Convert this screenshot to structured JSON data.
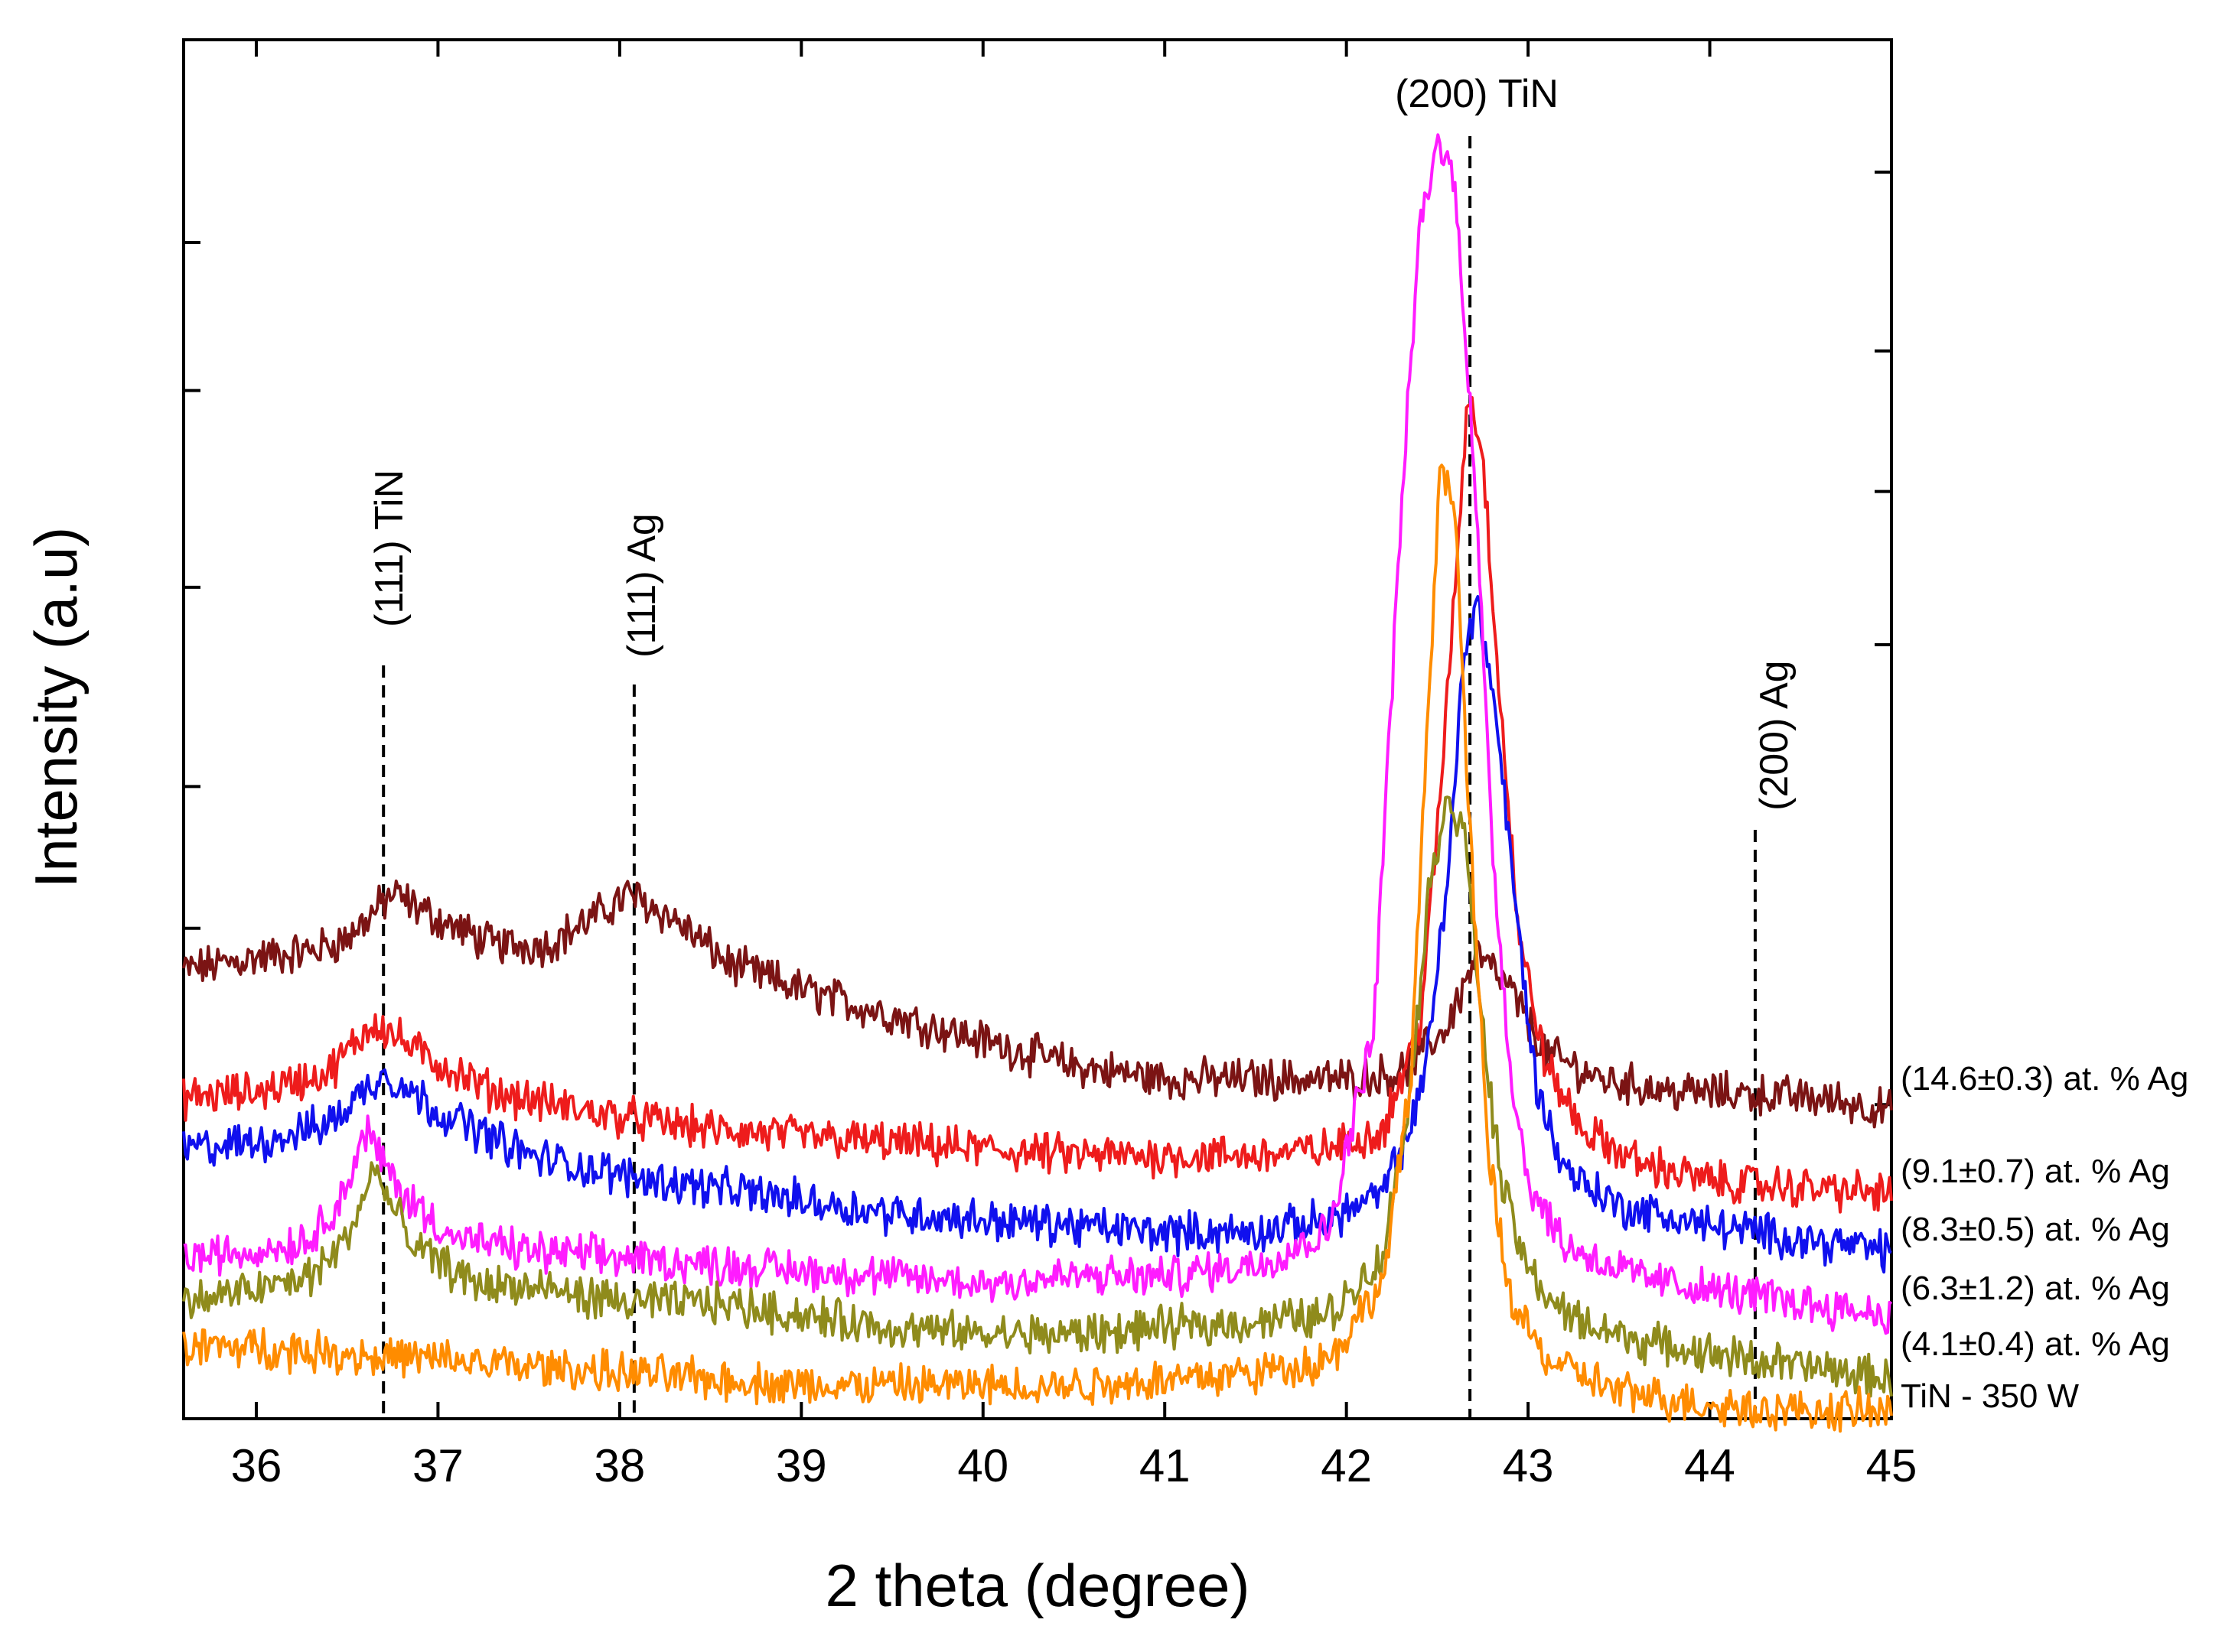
{
  "chart_data": {
    "type": "line",
    "title": "",
    "xlabel": "2 theta (degree)",
    "ylabel": "Intensity (a.u)",
    "xlim": [
      35.6,
      45
    ],
    "ylim": [
      0,
      100
    ],
    "y_tick_labels": "none",
    "grid": false,
    "x_ticks": [
      36,
      37,
      38,
      39,
      40,
      41,
      42,
      43,
      44,
      45
    ],
    "reference_lines": [
      {
        "x": 36.7,
        "label": "(111) TiN",
        "orientation": "vertical"
      },
      {
        "x": 38.08,
        "label": "(111) Ag",
        "orientation": "vertical"
      },
      {
        "x": 42.68,
        "label": "(200) TiN",
        "orientation": "horizontal"
      },
      {
        "x": 44.25,
        "label": "(200) Ag",
        "orientation": "vertical"
      }
    ],
    "series": [
      {
        "name": "(14.6±0.3) at. % Ag",
        "color": "#7b1414",
        "points": [
          [
            35.6,
            34.5
          ],
          [
            36.0,
            35.5
          ],
          [
            36.3,
            36.0
          ],
          [
            36.5,
            37.0
          ],
          [
            36.75,
            40.5
          ],
          [
            37.0,
            38.5
          ],
          [
            37.3,
            36.5
          ],
          [
            37.6,
            36.5
          ],
          [
            37.9,
            39.0
          ],
          [
            38.05,
            40.5
          ],
          [
            38.3,
            38.5
          ],
          [
            38.6,
            35.0
          ],
          [
            39.0,
            33.0
          ],
          [
            39.5,
            31.0
          ],
          [
            40.0,
            29.0
          ],
          [
            40.5,
            27.0
          ],
          [
            41.0,
            26.0
          ],
          [
            41.5,
            26.0
          ],
          [
            42.0,
            26.0
          ],
          [
            42.3,
            26.5
          ],
          [
            42.55,
            30.0
          ],
          [
            42.72,
            35.8
          ],
          [
            42.9,
            33.0
          ],
          [
            43.1,
            28.0
          ],
          [
            43.4,
            26.0
          ],
          [
            43.8,
            25.0
          ],
          [
            44.3,
            24.8
          ],
          [
            44.7,
            24.3
          ],
          [
            45.0,
            23.5
          ]
        ],
        "end_label": "(14.6±0.3) at. % Ag"
      },
      {
        "name": "(9.1±0.7) at. % Ag",
        "color": "#ee1c1c",
        "points": [
          [
            35.6,
            24.5
          ],
          [
            36.0,
            25.0
          ],
          [
            36.4,
            26.5
          ],
          [
            36.65,
            30.5
          ],
          [
            36.9,
            28.0
          ],
          [
            37.3,
            25.0
          ],
          [
            37.8,
            23.5
          ],
          [
            38.5,
            22.0
          ],
          [
            39.0,
            21.5
          ],
          [
            39.5,
            21.0
          ],
          [
            40.0,
            20.5
          ],
          [
            40.5,
            20.0
          ],
          [
            41.0,
            20.0
          ],
          [
            41.5,
            20.0
          ],
          [
            41.9,
            20.5
          ],
          [
            42.2,
            22.0
          ],
          [
            42.4,
            30.0
          ],
          [
            42.5,
            45.0
          ],
          [
            42.6,
            65.0
          ],
          [
            42.67,
            80.0
          ],
          [
            42.75,
            75.0
          ],
          [
            42.85,
            55.0
          ],
          [
            42.95,
            37.0
          ],
          [
            43.1,
            27.0
          ],
          [
            43.3,
            22.0
          ],
          [
            43.6,
            19.5
          ],
          [
            44.0,
            18.0
          ],
          [
            44.5,
            17.5
          ],
          [
            45.0,
            17.0
          ]
        ],
        "end_label": "(9.1±0.7) at. % Ag"
      },
      {
        "name": "(8.3±0.5) at. % Ag",
        "color": "#1010ee",
        "points": [
          [
            35.6,
            20.5
          ],
          [
            36.0,
            21.0
          ],
          [
            36.4,
            22.5
          ],
          [
            36.7,
            26.5
          ],
          [
            37.0,
            23.5
          ],
          [
            37.5,
            20.0
          ],
          [
            38.0,
            18.5
          ],
          [
            38.5,
            17.5
          ],
          [
            39.0,
            16.5
          ],
          [
            39.5,
            15.5
          ],
          [
            40.0,
            15.0
          ],
          [
            40.5,
            14.5
          ],
          [
            41.0,
            14.0
          ],
          [
            41.5,
            14.0
          ],
          [
            41.9,
            15.0
          ],
          [
            42.2,
            17.0
          ],
          [
            42.4,
            24.0
          ],
          [
            42.55,
            40.0
          ],
          [
            42.65,
            60.0
          ],
          [
            42.72,
            63.5
          ],
          [
            42.82,
            55.0
          ],
          [
            42.95,
            37.0
          ],
          [
            43.05,
            25.0
          ],
          [
            43.2,
            19.0
          ],
          [
            43.5,
            16.0
          ],
          [
            44.0,
            14.5
          ],
          [
            44.5,
            13.5
          ],
          [
            45.0,
            12.5
          ]
        ],
        "end_label": "(8.3±0.5) at. % Ag"
      },
      {
        "name": "(6.3±1.2) at. % Ag",
        "color": "#ff1cff",
        "points": [
          [
            35.6,
            12.0
          ],
          [
            36.0,
            12.5
          ],
          [
            36.3,
            13.5
          ],
          [
            36.5,
            17.5
          ],
          [
            36.6,
            22.0
          ],
          [
            36.8,
            17.0
          ],
          [
            37.1,
            13.5
          ],
          [
            37.5,
            12.5
          ],
          [
            38.0,
            12.0
          ],
          [
            38.5,
            11.5
          ],
          [
            39.0,
            11.0
          ],
          [
            39.5,
            10.5
          ],
          [
            40.0,
            10.0
          ],
          [
            40.5,
            10.5
          ],
          [
            41.0,
            10.5
          ],
          [
            41.5,
            11.5
          ],
          [
            41.9,
            14.0
          ],
          [
            42.15,
            30.0
          ],
          [
            42.3,
            70.0
          ],
          [
            42.4,
            92.0
          ],
          [
            42.5,
            99.5
          ],
          [
            42.6,
            96.0
          ],
          [
            42.7,
            75.0
          ],
          [
            42.8,
            45.0
          ],
          [
            42.9,
            27.0
          ],
          [
            43.0,
            18.0
          ],
          [
            43.2,
            13.0
          ],
          [
            43.6,
            10.5
          ],
          [
            44.0,
            9.5
          ],
          [
            44.5,
            8.5
          ],
          [
            45.0,
            7.5
          ]
        ],
        "end_label": "(6.3±1.2) at. % Ag"
      },
      {
        "name": "(4.1±0.4) at. % Ag",
        "color": "#8f8b1c",
        "points": [
          [
            35.6,
            8.5
          ],
          [
            36.0,
            9.5
          ],
          [
            36.3,
            10.5
          ],
          [
            36.5,
            13.5
          ],
          [
            36.65,
            19.0
          ],
          [
            36.85,
            13.0
          ],
          [
            37.2,
            10.0
          ],
          [
            37.6,
            9.5
          ],
          [
            38.0,
            8.5
          ],
          [
            38.5,
            8.5
          ],
          [
            39.0,
            7.5
          ],
          [
            39.5,
            6.5
          ],
          [
            40.0,
            6.0
          ],
          [
            40.5,
            6.0
          ],
          [
            41.0,
            6.5
          ],
          [
            41.5,
            7.0
          ],
          [
            41.9,
            7.5
          ],
          [
            42.2,
            12.0
          ],
          [
            42.35,
            25.0
          ],
          [
            42.45,
            40.0
          ],
          [
            42.55,
            48.5
          ],
          [
            42.65,
            45.0
          ],
          [
            42.75,
            30.0
          ],
          [
            42.85,
            18.0
          ],
          [
            43.0,
            11.0
          ],
          [
            43.2,
            7.5
          ],
          [
            43.6,
            5.5
          ],
          [
            44.0,
            4.5
          ],
          [
            44.5,
            3.5
          ],
          [
            45.0,
            2.5
          ]
        ],
        "end_label": "(4.1±0.4) at. % Ag"
      },
      {
        "name": "TiN - 350 W",
        "color": "#ff8c00",
        "points": [
          [
            35.6,
            5.0
          ],
          [
            36.0,
            5.0
          ],
          [
            36.5,
            4.5
          ],
          [
            37.0,
            4.0
          ],
          [
            37.5,
            3.5
          ],
          [
            38.0,
            3.0
          ],
          [
            38.5,
            2.5
          ],
          [
            39.0,
            2.0
          ],
          [
            39.5,
            2.0
          ],
          [
            40.0,
            2.0
          ],
          [
            40.5,
            2.0
          ],
          [
            41.0,
            2.5
          ],
          [
            41.5,
            3.0
          ],
          [
            41.9,
            4.0
          ],
          [
            42.2,
            10.0
          ],
          [
            42.35,
            25.0
          ],
          [
            42.45,
            55.0
          ],
          [
            42.52,
            75.0
          ],
          [
            42.6,
            70.0
          ],
          [
            42.68,
            45.0
          ],
          [
            42.78,
            20.0
          ],
          [
            42.9,
            9.0
          ],
          [
            43.1,
            4.0
          ],
          [
            43.5,
            1.5
          ],
          [
            44.0,
            0.5
          ],
          [
            44.5,
            0.0
          ],
          [
            45.0,
            0.0
          ]
        ],
        "end_label": "TiN - 350 W"
      }
    ]
  }
}
